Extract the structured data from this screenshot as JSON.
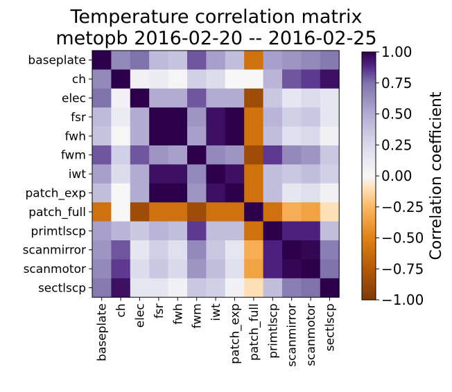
{
  "chart_data": {
    "type": "heatmap",
    "title_lines": [
      "Temperature correlation matrix",
      "metopb 2016-02-20 -- 2016-02-25"
    ],
    "row_labels": [
      "baseplate",
      "ch",
      "elec",
      "fsr",
      "fwh",
      "fwm",
      "iwt",
      "patch_exp",
      "patch_full",
      "primtlscp",
      "scanmirror",
      "scanmotor",
      "sectlscp"
    ],
    "col_labels": [
      "baseplate",
      "ch",
      "elec",
      "fsr",
      "fwh",
      "fwm",
      "iwt",
      "patch_exp",
      "patch_full",
      "primtlscp",
      "scanmirror",
      "scanmotor",
      "sectlscp"
    ],
    "values": [
      [
        1.0,
        0.65,
        0.75,
        0.42,
        0.37,
        0.8,
        0.55,
        0.4,
        -0.6,
        0.55,
        0.6,
        0.65,
        0.72
      ],
      [
        0.65,
        1.0,
        0.05,
        0.1,
        0.02,
        0.3,
        0.22,
        0.0,
        0.0,
        0.45,
        0.8,
        0.85,
        0.95
      ],
      [
        0.75,
        0.05,
        1.0,
        0.5,
        0.5,
        0.8,
        0.5,
        0.5,
        -0.85,
        0.35,
        0.15,
        0.22,
        0.15
      ],
      [
        0.42,
        0.1,
        0.5,
        1.0,
        1.0,
        0.6,
        0.95,
        1.0,
        -0.6,
        0.45,
        0.3,
        0.35,
        0.15
      ],
      [
        0.37,
        0.02,
        0.5,
        1.0,
        1.0,
        0.55,
        0.95,
        1.0,
        -0.6,
        0.4,
        0.2,
        0.25,
        0.05
      ],
      [
        0.8,
        0.3,
        0.8,
        0.6,
        0.55,
        1.0,
        0.65,
        0.6,
        -0.85,
        0.85,
        0.65,
        0.6,
        0.35
      ],
      [
        0.55,
        0.22,
        0.5,
        0.95,
        0.95,
        0.65,
        1.0,
        0.95,
        -0.6,
        0.4,
        0.35,
        0.4,
        0.3
      ],
      [
        0.4,
        0.0,
        0.5,
        1.0,
        1.0,
        0.6,
        0.95,
        1.0,
        -0.6,
        0.4,
        0.15,
        0.2,
        0.05
      ],
      [
        -0.6,
        0.0,
        -0.85,
        -0.6,
        -0.6,
        -0.85,
        -0.6,
        -0.6,
        1.0,
        -0.6,
        -0.3,
        -0.35,
        -0.1
      ],
      [
        0.55,
        0.45,
        0.35,
        0.45,
        0.4,
        0.85,
        0.4,
        0.4,
        -0.6,
        1.0,
        0.9,
        0.9,
        0.4
      ],
      [
        0.6,
        0.8,
        0.15,
        0.3,
        0.2,
        0.65,
        0.35,
        0.15,
        -0.3,
        0.9,
        1.0,
        0.98,
        0.7
      ],
      [
        0.65,
        0.85,
        0.22,
        0.35,
        0.25,
        0.6,
        0.4,
        0.2,
        -0.35,
        0.9,
        0.98,
        1.0,
        0.75
      ],
      [
        0.72,
        0.95,
        0.15,
        0.15,
        0.05,
        0.35,
        0.3,
        0.05,
        -0.1,
        0.4,
        0.7,
        0.75,
        1.0
      ]
    ],
    "vmin": -1.0,
    "vmax": 1.0,
    "colormap": "PuOr",
    "colorbar": {
      "label": "Correlation coefficient",
      "ticks": [
        1.0,
        0.75,
        0.5,
        0.25,
        0.0,
        -0.25,
        -0.5,
        -0.75,
        -1.0
      ],
      "tick_labels": [
        "1.00",
        "0.75",
        "0.50",
        "0.25",
        "0.00",
        "−0.25",
        "−0.50",
        "−0.75",
        "−1.00"
      ]
    },
    "grid": false
  }
}
